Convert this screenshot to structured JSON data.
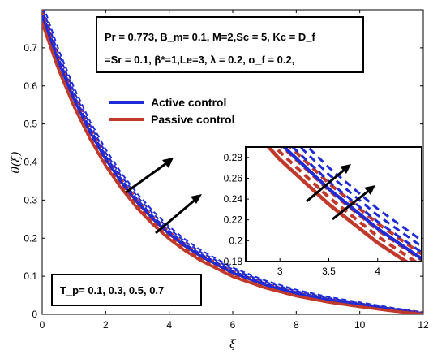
{
  "chart_data": {
    "type": "line",
    "title": "",
    "xlabel": "ξ",
    "ylabel": "θ(ξ)",
    "xlim": [
      0,
      12
    ],
    "ylim": [
      0,
      0.8
    ],
    "x_ticks": [
      "0",
      "2",
      "4",
      "6",
      "8",
      "10",
      "12"
    ],
    "y_ticks": [
      "0",
      "0.1",
      "0.2",
      "0.3",
      "0.4",
      "0.5",
      "0.6",
      "0.7"
    ],
    "params_line1": "Pr = 0.773, B_m= 0.1, M=2,Sc = 5, Kc = D_f",
    "params_line2": "=Sr = 0.1, β*=1,Le=3, λ = 0.2, σ_f = 0.2,",
    "tp_label": "T_p= 0.1, 0.3, 0.5, 0.7",
    "tp_values": [
      0.1,
      0.3,
      0.5,
      0.7
    ],
    "legend": [
      "Active control",
      "Passive control"
    ],
    "colors": {
      "active": "#1f2bd6",
      "passive": "#c0392b"
    },
    "x": [
      0,
      0.5,
      1,
      1.5,
      2,
      2.5,
      3,
      3.5,
      4,
      4.5,
      5,
      6,
      7,
      8,
      9,
      10,
      11,
      12
    ],
    "series": [
      {
        "name": "Active control",
        "values": [
          0.78,
          0.662,
          0.562,
          0.477,
          0.405,
          0.344,
          0.292,
          0.248,
          0.21,
          0.178,
          0.151,
          0.108,
          0.077,
          0.054,
          0.037,
          0.024,
          0.011,
          0.0
        ]
      },
      {
        "name": "Passive control",
        "values": [
          0.765,
          0.646,
          0.546,
          0.462,
          0.39,
          0.33,
          0.278,
          0.235,
          0.198,
          0.167,
          0.141,
          0.099,
          0.07,
          0.048,
          0.032,
          0.02,
          0.009,
          0.0
        ]
      }
    ],
    "inset": {
      "xlim": [
        2.65,
        4.45
      ],
      "ylim": [
        0.18,
        0.29
      ],
      "x_ticks": [
        "3",
        "3.5",
        "4"
      ],
      "y_ticks": [
        "0.18",
        "0.2",
        "0.22",
        "0.24",
        "0.26",
        "0.28"
      ]
    }
  }
}
